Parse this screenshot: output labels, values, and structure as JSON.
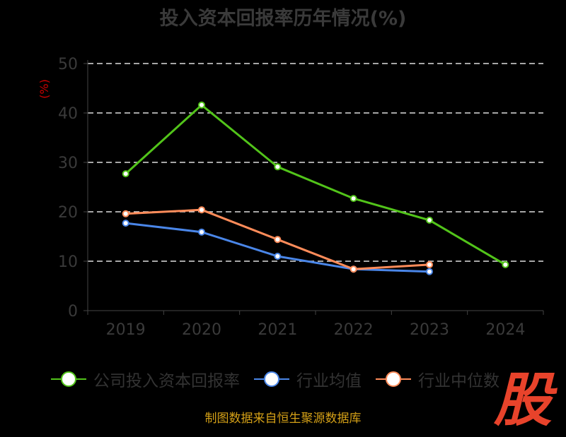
{
  "chart_data": {
    "type": "line",
    "title": "投入资本回报率历年情况(%)",
    "ylabel": "(%)",
    "categories": [
      "2019",
      "2020",
      "2021",
      "2022",
      "2023",
      "2024"
    ],
    "ylim": [
      0,
      50
    ],
    "yticks": [
      "0",
      "10",
      "20",
      "30",
      "40",
      "50"
    ],
    "grid": true,
    "legend": "bottom",
    "series": [
      {
        "name": "公司投入资本回报率",
        "color": "#52c41a",
        "values": [
          27.7,
          41.6,
          29.1,
          22.7,
          18.3,
          9.3
        ]
      },
      {
        "name": "行业均值",
        "color": "#4a86e8",
        "values": [
          17.7,
          15.9,
          11.0,
          8.4,
          7.9,
          null
        ]
      },
      {
        "name": "行业中位数",
        "color": "#ff8c5a",
        "values": [
          19.6,
          20.4,
          14.4,
          8.4,
          9.3,
          null
        ]
      }
    ]
  },
  "source": "制图数据来自恒生聚源数据库",
  "logo": "股"
}
